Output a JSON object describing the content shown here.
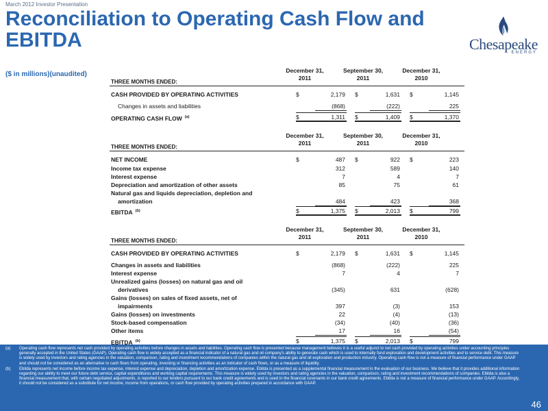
{
  "header": {
    "topline": "March 2012 Investor Presentation",
    "title": "Reconciliation to Operating Cash Flow and EBITDA",
    "units": "($ in millions)(unaudited)"
  },
  "logo": {
    "word": "Chesapeake",
    "sub": "ENERGY"
  },
  "tables": [
    {
      "header_label": "THREE MONTHS ENDED:",
      "columns": [
        "December 31,\n2011",
        "September 30,\n2011",
        "December 31,\n2010"
      ],
      "rows": [
        {
          "label": "CASH PROVIDED BY OPERATING ACTIVITIES",
          "values": [
            "2,179",
            "1,631",
            "1,145"
          ],
          "dollar": true,
          "style": "bold"
        },
        {
          "label": "Changes in assets and liabilities",
          "values": [
            "(868)",
            "(222)",
            "225"
          ],
          "dollar": false,
          "style": "indent",
          "underline": true
        },
        {
          "label": "OPERATING CASH FLOW",
          "sup": "(a)",
          "values": [
            "1,311",
            "1,409",
            "1,370"
          ],
          "dollar": true,
          "style": "bold",
          "double": true
        }
      ]
    },
    {
      "header_label": "THREE MONTHS ENDED:",
      "columns": [
        "December 31,\n2011",
        "September 30,\n2011",
        "December 31,\n2010"
      ],
      "rows": [
        {
          "label": "NET INCOME",
          "values": [
            "487",
            "922",
            "223"
          ],
          "dollar": true,
          "style": "bold"
        },
        {
          "label": "Income tax expense",
          "values": [
            "312",
            "589",
            "140"
          ],
          "dollar": false,
          "style": "bold"
        },
        {
          "label": "Interest expense",
          "values": [
            "7",
            "4",
            "7"
          ],
          "dollar": false,
          "style": "bold"
        },
        {
          "label": "Depreciation and amortization of other assets",
          "values": [
            "85",
            "75",
            "61"
          ],
          "dollar": false,
          "style": "bold"
        },
        {
          "label": "Natural gas and liquids depreciation, depletion and",
          "values": [
            "",
            "",
            ""
          ],
          "dollar": false,
          "style": "bold"
        },
        {
          "label": "amortization",
          "values": [
            "484",
            "423",
            "368"
          ],
          "dollar": false,
          "style": "indent2",
          "underline": true
        },
        {
          "label": "EBITDA",
          "sup": "(b)",
          "values": [
            "1,375",
            "2,013",
            "799"
          ],
          "dollar": true,
          "style": "bold",
          "double": true
        }
      ]
    },
    {
      "header_label": "THREE MONTHS ENDED:",
      "columns": [
        "December 31,\n2011",
        "September 30,\n2011",
        "December 31,\n2010"
      ],
      "rows": [
        {
          "label": "CASH PROVIDED BY OPERATING ACTIVITIES",
          "values": [
            "2,179",
            "1,631",
            "1,145"
          ],
          "dollar": true,
          "style": "bold"
        },
        {
          "label": "Changes in assets and liabilities",
          "values": [
            "(868)",
            "(222)",
            "225"
          ],
          "dollar": false,
          "style": "bold"
        },
        {
          "label": "Interest expense",
          "values": [
            "7",
            "4",
            "7"
          ],
          "dollar": false,
          "style": "bold"
        },
        {
          "label": "Unrealized gains (losses) on natural gas and oil",
          "values": [
            "",
            "",
            ""
          ],
          "dollar": false,
          "style": "bold"
        },
        {
          "label": "derivatives",
          "values": [
            "(345)",
            "631",
            "(628)"
          ],
          "dollar": false,
          "style": "indent2"
        },
        {
          "label": "Gains (losses) on sales of fixed assets, net of",
          "values": [
            "",
            "",
            ""
          ],
          "dollar": false,
          "style": "bold"
        },
        {
          "label": "impairments",
          "values": [
            "397",
            "(3)",
            "153"
          ],
          "dollar": false,
          "style": "indent2"
        },
        {
          "label": "Gains (losses) on investments",
          "values": [
            "22",
            "(4)",
            "(13)"
          ],
          "dollar": false,
          "style": "bold"
        },
        {
          "label": "Stock-based compensation",
          "values": [
            "(34)",
            "(40)",
            "(36)"
          ],
          "dollar": false,
          "style": "bold"
        },
        {
          "label": "Other items",
          "values": [
            "17",
            "16",
            "(54)"
          ],
          "dollar": false,
          "style": "bold",
          "underline": true
        },
        {
          "label": "EBITDA",
          "sup": "(b)",
          "values": [
            "1,375",
            "2,013",
            "799"
          ],
          "dollar": true,
          "style": "bold",
          "double": true
        }
      ]
    }
  ],
  "footnotes": [
    {
      "mark": "(a)",
      "text": "Operating cash flow represents net cash provided by operating activities before changes in assets and liabilities. Operating cash flow is presented because management believes it is a useful adjunct to net cash provided by operating activities under accounting principles generally accepted in the United States (GAAP). Operating cash flow is widely accepted as a financial indicator of a natural gas and oil company's ability to generate cash which is used to internally fund exploration and development activities and to service debt. This measure is widely used by investors and rating agencies in the valuation, comparison, rating and investment recommendations of companies within the natural gas and oil exploration and production industry. Operating cash flow is not a measure of financial performance under GAAP and should not be considered as an alternative to cash flows from operating, investing or financing activities as an indicator of cash flows, or as a measure of liquidity."
    },
    {
      "mark": "(b)",
      "text": "Ebitda represents net income before income tax expense, interest expense and depreciation, depletion and amortization expense. Ebitda is presented as a supplemental financial measurement in the evaluation of our business. We believe that it provides additional information regarding our ability to meet our future debt service, capital expenditures and working capital requirements. This measure is widely used by investors and rating agencies in the valuation, comparison, rating and investment recommendations of companies. Ebitda is also a financial measurement that, with certain negotiated adjustments, is reported to our lenders pursuant to our bank credit agreements and is used in the financial covenants in our bank credit agreements. Ebitda is not a measure of financial performance under GAAP. Accordingly, it should not be considered as a substitute for net income, income from operations, or cash flow provided by operating activities prepared in accordance with GAAP."
    }
  ],
  "page_number": "46"
}
